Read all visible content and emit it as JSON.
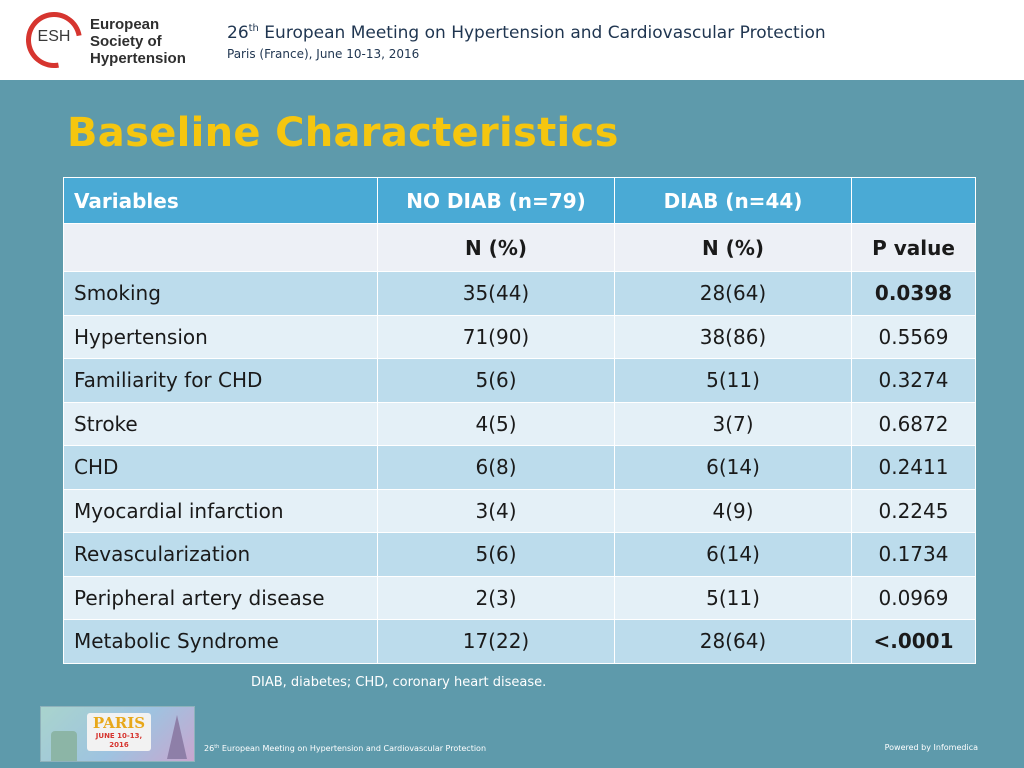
{
  "header": {
    "logo": {
      "abbreviation": "ESH",
      "name_lines": [
        "European",
        "Society of",
        "Hypertension"
      ]
    },
    "meeting": {
      "number": "26",
      "ordinal_suffix": "th",
      "title_rest": " European Meeting on Hypertension and Cardiovascular Protection",
      "subtitle": "Paris (France), June 10-13, 2016"
    }
  },
  "slide": {
    "title": "Baseline Characteristics"
  },
  "table": {
    "columns": [
      "Variables",
      "NO DIAB (n=79)",
      "DIAB (n=44)",
      ""
    ],
    "subheader": [
      "",
      "N (%)",
      "N (%)",
      "P value"
    ],
    "rows": [
      {
        "variable": "Smoking",
        "no_diab": "35(44)",
        "diab": "28(64)",
        "p_value": "0.0398",
        "significant": true
      },
      {
        "variable": "Hypertension",
        "no_diab": "71(90)",
        "diab": "38(86)",
        "p_value": "0.5569",
        "significant": false
      },
      {
        "variable": "Familiarity for CHD",
        "no_diab": "5(6)",
        "diab": "5(11)",
        "p_value": "0.3274",
        "significant": false
      },
      {
        "variable": "Stroke",
        "no_diab": "4(5)",
        "diab": "3(7)",
        "p_value": "0.6872",
        "significant": false
      },
      {
        "variable": "CHD",
        "no_diab": "6(8)",
        "diab": "6(14)",
        "p_value": "0.2411",
        "significant": false
      },
      {
        "variable": "Myocardial infarction",
        "no_diab": "3(4)",
        "diab": "4(9)",
        "p_value": "0.2245",
        "significant": false
      },
      {
        "variable": "Revascularization",
        "no_diab": "5(6)",
        "diab": "6(14)",
        "p_value": "0.1734",
        "significant": false
      },
      {
        "variable": "Peripheral artery disease",
        "no_diab": "2(3)",
        "diab": "5(11)",
        "p_value": "0.0969",
        "significant": false
      },
      {
        "variable": "Metabolic Syndrome",
        "no_diab": "17(22)",
        "diab": "28(64)",
        "p_value": "<.0001",
        "significant": true
      }
    ]
  },
  "footnote": "DIAB, diabetes; CHD, coronary heart disease.",
  "footer": {
    "thumbnail": {
      "word": "PARIS",
      "date": "JUNE 10-13, 2016"
    },
    "meeting_number": "26",
    "meeting_suffix": "th",
    "meeting_rest": " European Meeting on Hypertension and Cardiovascular Protection",
    "powered_by": "Powered by Infomedica"
  },
  "colors": {
    "background": "#5e9aab",
    "title": "#f5c60f",
    "table_header": "#4aaad5",
    "row_odd": "#bcdcec",
    "row_even": "#e4f0f7",
    "logo_red": "#d6352f"
  }
}
